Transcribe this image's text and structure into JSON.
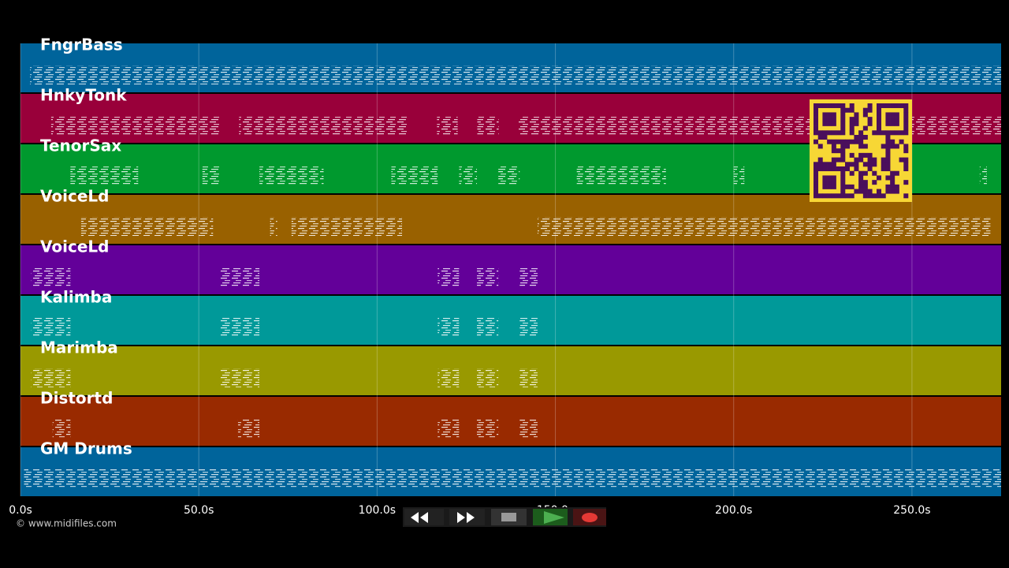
{
  "timeline": {
    "xlim": [
      0,
      275
    ],
    "xticks": [
      {
        "value": 0,
        "label": "0.0s"
      },
      {
        "value": 50,
        "label": "50.0s"
      },
      {
        "value": 100,
        "label": "100.0s"
      },
      {
        "value": 150,
        "label": "150.0s"
      },
      {
        "value": 200,
        "label": "200.0s"
      },
      {
        "value": 250,
        "label": "250.0s"
      }
    ],
    "tracks": [
      {
        "name": "FngrBass",
        "color": "#00649b",
        "segments": [
          [
            2.7,
            275
          ]
        ]
      },
      {
        "name": "HnkyTonk",
        "color": "#99003a",
        "segments": [
          [
            8.6,
            55.8
          ],
          [
            61.3,
            108.4
          ],
          [
            116.8,
            122.6
          ],
          [
            128.1,
            134.1
          ],
          [
            139.6,
            275
          ]
        ]
      },
      {
        "name": "TenorSax",
        "color": "#00992e",
        "segments": [
          [
            14,
            33
          ],
          [
            51,
            56
          ],
          [
            67,
            85
          ],
          [
            104,
            117
          ],
          [
            123,
            128
          ],
          [
            134,
            140
          ],
          [
            156,
            181
          ],
          [
            200,
            203
          ],
          [
            269,
            271
          ]
        ]
      },
      {
        "name": "VoiceLd",
        "color": "#996100",
        "segments": [
          [
            17,
            54
          ],
          [
            70,
            72
          ],
          [
            76,
            107
          ],
          [
            145,
            272
          ]
        ]
      },
      {
        "name": "VoiceLd",
        "color": "#630099",
        "segments": [
          [
            3,
            14
          ],
          [
            56,
            67
          ],
          [
            117,
            123
          ],
          [
            128,
            134
          ],
          [
            140,
            145
          ]
        ]
      },
      {
        "name": "Kalimba",
        "color": "#009999",
        "segments": [
          [
            3,
            14
          ],
          [
            56,
            67
          ],
          [
            117,
            123
          ],
          [
            128,
            134
          ],
          [
            140,
            145
          ]
        ]
      },
      {
        "name": "Marimba",
        "color": "#999900",
        "segments": [
          [
            3,
            14
          ],
          [
            56,
            67
          ],
          [
            117,
            123
          ],
          [
            128,
            134
          ],
          [
            140,
            145
          ]
        ]
      },
      {
        "name": "Distortd",
        "color": "#992a00",
        "segments": [
          [
            9,
            14
          ],
          [
            61,
            67
          ],
          [
            117,
            123
          ],
          [
            128,
            134
          ],
          [
            140,
            145
          ]
        ]
      },
      {
        "name": "GM Drums",
        "color": "#00649b",
        "segments": [
          [
            1,
            275
          ]
        ]
      }
    ]
  },
  "credit": "© www.midifiles.com"
}
